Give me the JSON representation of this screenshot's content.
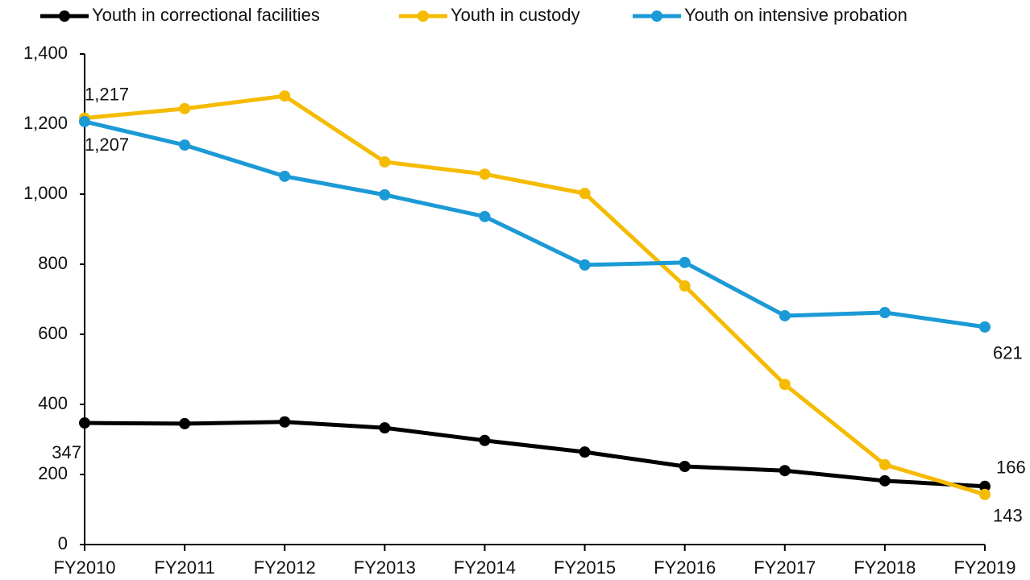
{
  "chart_data": {
    "type": "line",
    "categories": [
      "FY2010",
      "FY2011",
      "FY2012",
      "FY2013",
      "FY2014",
      "FY2015",
      "FY2016",
      "FY2017",
      "FY2018",
      "FY2019"
    ],
    "series": [
      {
        "name": "Youth in correctional facilities",
        "color": "#000000",
        "values": [
          347,
          345,
          350,
          333,
          297,
          264,
          223,
          211,
          182,
          166
        ],
        "value_labels": [
          "347",
          null,
          null,
          null,
          null,
          null,
          null,
          null,
          null,
          "166"
        ]
      },
      {
        "name": "Youth in custody",
        "color": "#f5bb00",
        "values": [
          1217,
          1244,
          1280,
          1092,
          1057,
          1002,
          738,
          457,
          228,
          143
        ],
        "value_labels": [
          "1,217",
          null,
          null,
          null,
          null,
          null,
          null,
          null,
          null,
          "143"
        ]
      },
      {
        "name": "Youth on intensive probation",
        "color": "#1b9ad6",
        "values": [
          1207,
          1140,
          1051,
          998,
          936,
          798,
          805,
          653,
          662,
          621
        ],
        "value_labels": [
          "1,207",
          null,
          null,
          null,
          null,
          null,
          null,
          null,
          null,
          "621"
        ]
      }
    ],
    "ylim": [
      0,
      1400
    ],
    "yticks": [
      0,
      200,
      400,
      600,
      800,
      {
        "value": 1000,
        "label": "1,000"
      },
      {
        "value": 1200,
        "label": "1,200"
      },
      {
        "value": 1400,
        "label": "1,400"
      }
    ],
    "grid": false,
    "legend": "top"
  }
}
